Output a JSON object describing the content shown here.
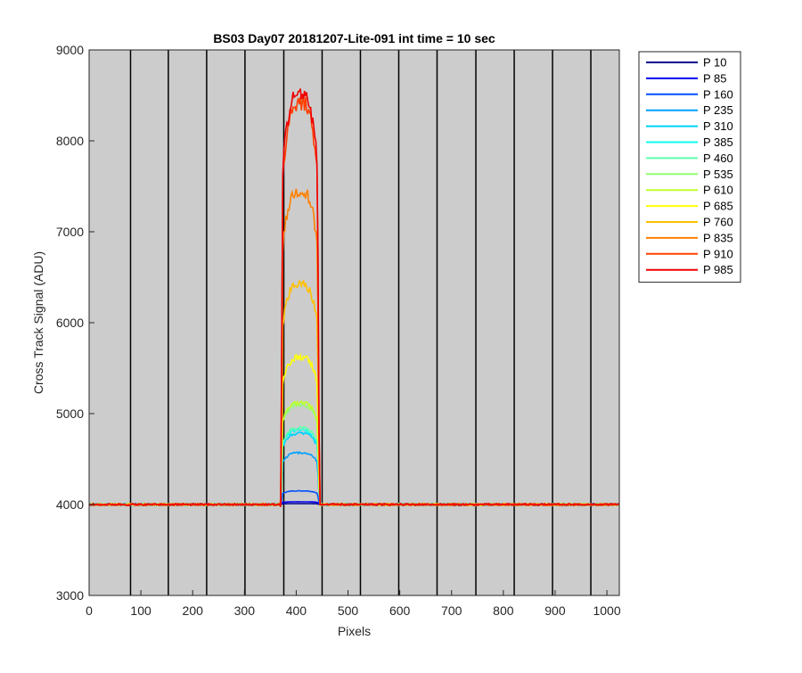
{
  "chart_data": {
    "type": "line",
    "title": "BS03 Day07 20181207-Lite-091 int time = 10 sec",
    "xlabel": "Pixels",
    "ylabel": "Cross Track Signal (ADU)",
    "xlim": [
      0,
      1024
    ],
    "ylim": [
      3000,
      9000
    ],
    "xticks": [
      0,
      100,
      200,
      300,
      400,
      500,
      600,
      700,
      800,
      900,
      1000
    ],
    "yticks": [
      3000,
      4000,
      5000,
      6000,
      7000,
      8000,
      9000
    ],
    "background_color": "#cccccc",
    "grid": false,
    "legend_location": "outside-top-right",
    "vertical_lines_x": [
      80,
      153,
      227,
      301,
      376,
      450,
      524,
      598,
      672,
      747,
      821,
      895,
      969
    ],
    "baseline": 4000,
    "plateau_x_range": [
      370,
      445
    ],
    "series": [
      {
        "name": "P 10",
        "color": "#00008f",
        "peak": 4010
      },
      {
        "name": "P 85",
        "color": "#0000ef",
        "peak": 4030
      },
      {
        "name": "P 160",
        "color": "#0050ff",
        "peak": 4150
      },
      {
        "name": "P 235",
        "color": "#00a0ff",
        "peak": 4570
      },
      {
        "name": "P 310",
        "color": "#00d0ff",
        "peak": 4780
      },
      {
        "name": "P 385",
        "color": "#10ffef",
        "peak": 4820
      },
      {
        "name": "P 460",
        "color": "#60ffb0",
        "peak": 4840
      },
      {
        "name": "P 535",
        "color": "#90ff70",
        "peak": 5100
      },
      {
        "name": "P 610",
        "color": "#c0ff30",
        "peak": 5120
      },
      {
        "name": "P 685",
        "color": "#ffff00",
        "peak": 5620
      },
      {
        "name": "P 760",
        "color": "#ffc000",
        "peak": 6420
      },
      {
        "name": "P 835",
        "color": "#ff8000",
        "peak": 7450
      },
      {
        "name": "P 910",
        "color": "#ff4000",
        "peak": 8420
      },
      {
        "name": "P 985",
        "color": "#ef0000",
        "peak": 8520
      }
    ]
  }
}
